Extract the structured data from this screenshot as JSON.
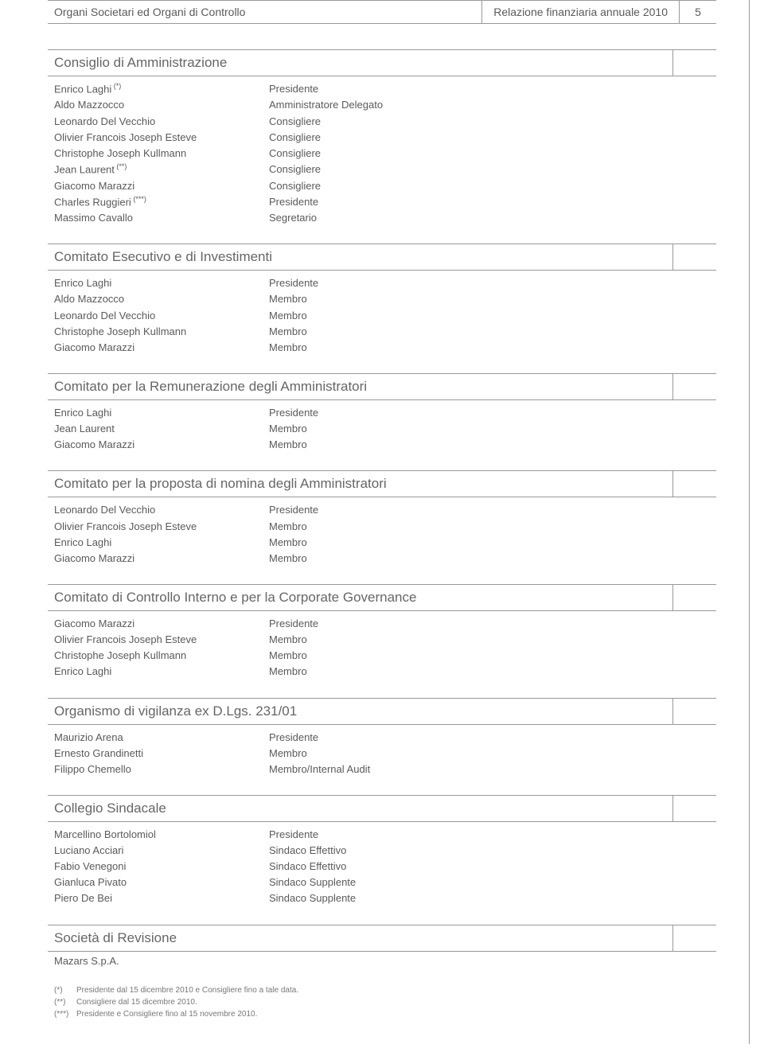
{
  "header": {
    "left": "Organi Societari ed Organi di Controllo",
    "right": "Relazione finanziaria annuale 2010",
    "page": "5"
  },
  "sections": [
    {
      "title": "Consiglio di Amministrazione",
      "rows": [
        {
          "name": "Enrico Laghi",
          "sup": "(*)",
          "role": "Presidente"
        },
        {
          "name": "Aldo Mazzocco",
          "sup": "",
          "role": "Amministratore Delegato"
        },
        {
          "name": "Leonardo Del Vecchio",
          "sup": "",
          "role": "Consigliere"
        },
        {
          "name": "Olivier Francois Joseph Esteve",
          "sup": "",
          "role": "Consigliere"
        },
        {
          "name": "Christophe Joseph Kullmann",
          "sup": "",
          "role": "Consigliere"
        },
        {
          "name": "Jean Laurent",
          "sup": "(**)",
          "role": "Consigliere"
        },
        {
          "name": "Giacomo Marazzi",
          "sup": "",
          "role": "Consigliere"
        },
        {
          "name": "Charles Ruggieri",
          "sup": "(***)",
          "role": "Presidente"
        },
        {
          "name": "Massimo Cavallo",
          "sup": "",
          "role": "Segretario"
        }
      ]
    },
    {
      "title": "Comitato Esecutivo e di Investimenti",
      "rows": [
        {
          "name": "Enrico Laghi",
          "sup": "",
          "role": "Presidente"
        },
        {
          "name": "Aldo Mazzocco",
          "sup": "",
          "role": "Membro"
        },
        {
          "name": "Leonardo Del Vecchio",
          "sup": "",
          "role": "Membro"
        },
        {
          "name": "Christophe Joseph Kullmann",
          "sup": "",
          "role": "Membro"
        },
        {
          "name": "Giacomo Marazzi",
          "sup": "",
          "role": "Membro"
        }
      ]
    },
    {
      "title": "Comitato per la Remunerazione degli Amministratori",
      "rows": [
        {
          "name": "Enrico Laghi",
          "sup": "",
          "role": "Presidente"
        },
        {
          "name": "Jean Laurent",
          "sup": "",
          "role": "Membro"
        },
        {
          "name": "Giacomo Marazzi",
          "sup": "",
          "role": "Membro"
        }
      ]
    },
    {
      "title": "Comitato per la proposta di nomina degli Amministratori",
      "rows": [
        {
          "name": "Leonardo Del Vecchio",
          "sup": "",
          "role": "Presidente"
        },
        {
          "name": "Olivier Francois Joseph Esteve",
          "sup": "",
          "role": "Membro"
        },
        {
          "name": "Enrico Laghi",
          "sup": "",
          "role": "Membro"
        },
        {
          "name": "Giacomo Marazzi",
          "sup": "",
          "role": "Membro"
        }
      ]
    },
    {
      "title": "Comitato di Controllo Interno e per la Corporate Governance",
      "rows": [
        {
          "name": "Giacomo Marazzi",
          "sup": "",
          "role": "Presidente"
        },
        {
          "name": "Olivier Francois Joseph Esteve",
          "sup": "",
          "role": "Membro"
        },
        {
          "name": "Christophe Joseph Kullmann",
          "sup": "",
          "role": "Membro"
        },
        {
          "name": "Enrico Laghi",
          "sup": "",
          "role": "Membro"
        }
      ]
    },
    {
      "title": "Organismo di vigilanza ex D.Lgs. 231/01",
      "rows": [
        {
          "name": "Maurizio Arena",
          "sup": "",
          "role": "Presidente"
        },
        {
          "name": "Ernesto Grandinetti",
          "sup": "",
          "role": "Membro"
        },
        {
          "name": "Filippo Chemello",
          "sup": "",
          "role": "Membro/Internal Audit"
        }
      ]
    },
    {
      "title": "Collegio Sindacale",
      "rows": [
        {
          "name": "Marcellino Bortolomiol",
          "sup": "",
          "role": "Presidente"
        },
        {
          "name": "Luciano Acciari",
          "sup": "",
          "role": "Sindaco Effettivo"
        },
        {
          "name": "Fabio Venegoni",
          "sup": "",
          "role": "Sindaco Effettivo"
        },
        {
          "name": "Gianluca Pivato",
          "sup": "",
          "role": "Sindaco Supplente"
        },
        {
          "name": "Piero De Bei",
          "sup": "",
          "role": "Sindaco Supplente"
        }
      ]
    },
    {
      "title": "Società di Revisione",
      "single": "Mazars S.p.A."
    }
  ],
  "footnotes": [
    {
      "mark": "(*)",
      "text": "Presidente dal 15 dicembre 2010 e Consigliere fino a tale data."
    },
    {
      "mark": "(**)",
      "text": "Consigliere dal 15 dicembre 2010."
    },
    {
      "mark": "(***)",
      "text": "Presidente e Consigliere fino al 15 novembre 2010."
    }
  ]
}
